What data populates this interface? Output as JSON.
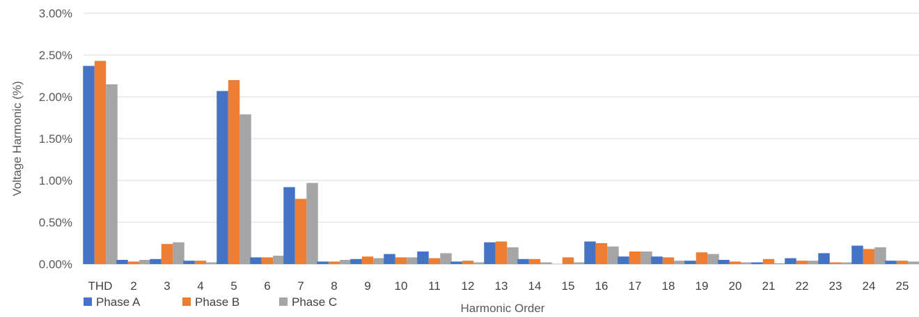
{
  "chart_data": {
    "type": "bar",
    "xlabel": "Harmonic Order",
    "ylabel": "Voltage Harmonic (%)",
    "ylim": [
      0,
      3.0
    ],
    "ytick_step": 0.5,
    "ytick_labels": [
      "0.00%",
      "0.50%",
      "1.00%",
      "1.50%",
      "2.00%",
      "2.50%",
      "3.00%"
    ],
    "grid": true,
    "legend_position": "bottom-left",
    "categories": [
      "THD",
      "2",
      "3",
      "4",
      "5",
      "6",
      "7",
      "8",
      "9",
      "10",
      "11",
      "12",
      "13",
      "14",
      "15",
      "16",
      "17",
      "18",
      "19",
      "20",
      "21",
      "22",
      "23",
      "24",
      "25"
    ],
    "series": [
      {
        "name": "Phase A",
        "color": "#4472C4",
        "values": [
          2.37,
          0.05,
          0.06,
          0.04,
          2.07,
          0.08,
          0.92,
          0.03,
          0.06,
          0.12,
          0.15,
          0.03,
          0.26,
          0.06,
          0.0,
          0.27,
          0.09,
          0.09,
          0.04,
          0.05,
          0.02,
          0.07,
          0.13,
          0.22,
          0.04
        ]
      },
      {
        "name": "Phase B",
        "color": "#ED7D31",
        "values": [
          2.43,
          0.03,
          0.24,
          0.04,
          2.2,
          0.08,
          0.78,
          0.03,
          0.09,
          0.08,
          0.07,
          0.04,
          0.27,
          0.06,
          0.08,
          0.25,
          0.15,
          0.08,
          0.14,
          0.03,
          0.06,
          0.04,
          0.02,
          0.18,
          0.04
        ]
      },
      {
        "name": "Phase C",
        "color": "#A5A5A5",
        "values": [
          2.15,
          0.05,
          0.26,
          0.02,
          1.79,
          0.1,
          0.97,
          0.05,
          0.07,
          0.08,
          0.13,
          0.02,
          0.2,
          0.02,
          0.02,
          0.21,
          0.15,
          0.04,
          0.12,
          0.02,
          0.01,
          0.04,
          0.02,
          0.2,
          0.03
        ]
      }
    ]
  }
}
